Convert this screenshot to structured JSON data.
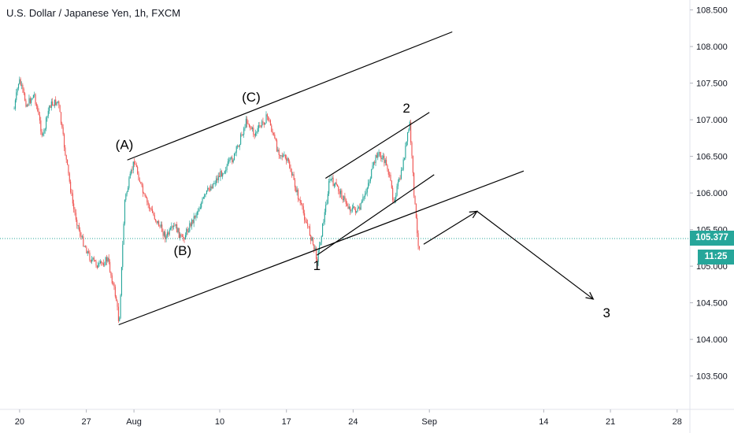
{
  "header": {
    "title": "U.S. Dollar / Japanese Yen, 1h, FXCM"
  },
  "colors": {
    "up": "#26a69a",
    "down": "#ef5350",
    "price_line": "#26a69a",
    "price_tag_bg": "#26a69a",
    "time_tag_bg": "#26a69a",
    "drawing": "#000000"
  },
  "price_tag": {
    "value": "105.377"
  },
  "time_tag": {
    "value": "11:25"
  },
  "chart_data": {
    "type": "candlestick",
    "symbol": "USDJPY",
    "interval": "1h",
    "ylim": [
      103.1,
      108.6
    ],
    "y_ticks": [
      "103.500",
      "104.000",
      "104.500",
      "105.000",
      "105.500",
      "106.000",
      "106.500",
      "107.000",
      "107.500",
      "108.000",
      "108.500"
    ],
    "x_ticks": [
      "20",
      "27",
      "Aug",
      "10",
      "17",
      "24",
      "Sep",
      "14",
      "21",
      "28"
    ],
    "x_tick_days": [
      -11,
      -4,
      1,
      10,
      17,
      24,
      32,
      44,
      51,
      58
    ],
    "last_price": 105.377,
    "price_path": [
      {
        "day": -11.6,
        "price": 107.15
      },
      {
        "day": -11.1,
        "price": 107.55
      },
      {
        "day": -10.3,
        "price": 107.2
      },
      {
        "day": -9.5,
        "price": 107.35
      },
      {
        "day": -8.6,
        "price": 106.75
      },
      {
        "day": -7.9,
        "price": 107.2
      },
      {
        "day": -7.0,
        "price": 107.25
      },
      {
        "day": -6.2,
        "price": 106.5
      },
      {
        "day": -5.4,
        "price": 105.8
      },
      {
        "day": -4.6,
        "price": 105.4
      },
      {
        "day": -3.6,
        "price": 105.1
      },
      {
        "day": -2.7,
        "price": 105.0
      },
      {
        "day": -1.8,
        "price": 105.1
      },
      {
        "day": -0.9,
        "price": 104.55
      },
      {
        "day": -0.6,
        "price": 104.2
      },
      {
        "day": 0.0,
        "price": 105.9
      },
      {
        "day": 1.0,
        "price": 106.45
      },
      {
        "day": 2.0,
        "price": 105.95
      },
      {
        "day": 3.0,
        "price": 105.7
      },
      {
        "day": 4.3,
        "price": 105.4
      },
      {
        "day": 5.3,
        "price": 105.55
      },
      {
        "day": 6.0,
        "price": 105.35
      },
      {
        "day": 7.4,
        "price": 105.7
      },
      {
        "day": 8.8,
        "price": 106.05
      },
      {
        "day": 10.0,
        "price": 106.25
      },
      {
        "day": 11.5,
        "price": 106.5
      },
      {
        "day": 12.8,
        "price": 107.0
      },
      {
        "day": 13.6,
        "price": 106.8
      },
      {
        "day": 15.0,
        "price": 107.05
      },
      {
        "day": 16.0,
        "price": 106.6
      },
      {
        "day": 17.2,
        "price": 106.4
      },
      {
        "day": 18.3,
        "price": 105.9
      },
      {
        "day": 19.3,
        "price": 105.5
      },
      {
        "day": 20.2,
        "price": 105.1
      },
      {
        "day": 21.2,
        "price": 105.9
      },
      {
        "day": 21.5,
        "price": 106.2
      },
      {
        "day": 22.4,
        "price": 106.05
      },
      {
        "day": 23.5,
        "price": 105.8
      },
      {
        "day": 24.6,
        "price": 105.75
      },
      {
        "day": 25.6,
        "price": 106.15
      },
      {
        "day": 26.5,
        "price": 106.55
      },
      {
        "day": 27.5,
        "price": 106.4
      },
      {
        "day": 28.2,
        "price": 105.9
      },
      {
        "day": 29.0,
        "price": 106.25
      },
      {
        "day": 29.9,
        "price": 106.95
      },
      {
        "day": 30.3,
        "price": 106.1
      },
      {
        "day": 30.7,
        "price": 105.4
      },
      {
        "day": 30.9,
        "price": 105.25
      },
      {
        "day": 31.0,
        "price": 105.38
      }
    ],
    "annotations": {
      "wave_labels": [
        {
          "text": "(A)",
          "day": 0.0,
          "price": 106.6
        },
        {
          "text": "(B)",
          "day": 6.1,
          "price": 105.15
        },
        {
          "text": "(C)",
          "day": 13.3,
          "price": 107.25
        },
        {
          "text": "1",
          "day": 20.2,
          "price": 104.95
        },
        {
          "text": "2",
          "day": 29.6,
          "price": 107.1
        },
        {
          "text": "3",
          "day": 50.6,
          "price": 104.3
        }
      ],
      "trend_lines": [
        {
          "name": "outer-channel-upper",
          "from": {
            "day": 0.3,
            "price": 106.45
          },
          "to": {
            "day": 34.4,
            "price": 108.2
          }
        },
        {
          "name": "outer-channel-lower",
          "from": {
            "day": -0.6,
            "price": 104.2
          },
          "to": {
            "day": 41.9,
            "price": 106.3
          }
        },
        {
          "name": "wave-line-1-to-2",
          "from": {
            "day": 20.2,
            "price": 105.15
          },
          "to": {
            "day": 32.5,
            "price": 106.25
          }
        },
        {
          "name": "inner-channel-upper",
          "from": {
            "day": 21.1,
            "price": 106.2
          },
          "to": {
            "day": 32.0,
            "price": 107.1
          }
        }
      ],
      "projection_arrows": [
        {
          "name": "projection-up",
          "from": {
            "day": 31.4,
            "price": 105.3
          },
          "to": {
            "day": 37.0,
            "price": 105.75
          }
        },
        {
          "name": "projection-down",
          "from": {
            "day": 37.0,
            "price": 105.75
          },
          "to": {
            "day": 49.2,
            "price": 104.55
          }
        }
      ]
    }
  }
}
